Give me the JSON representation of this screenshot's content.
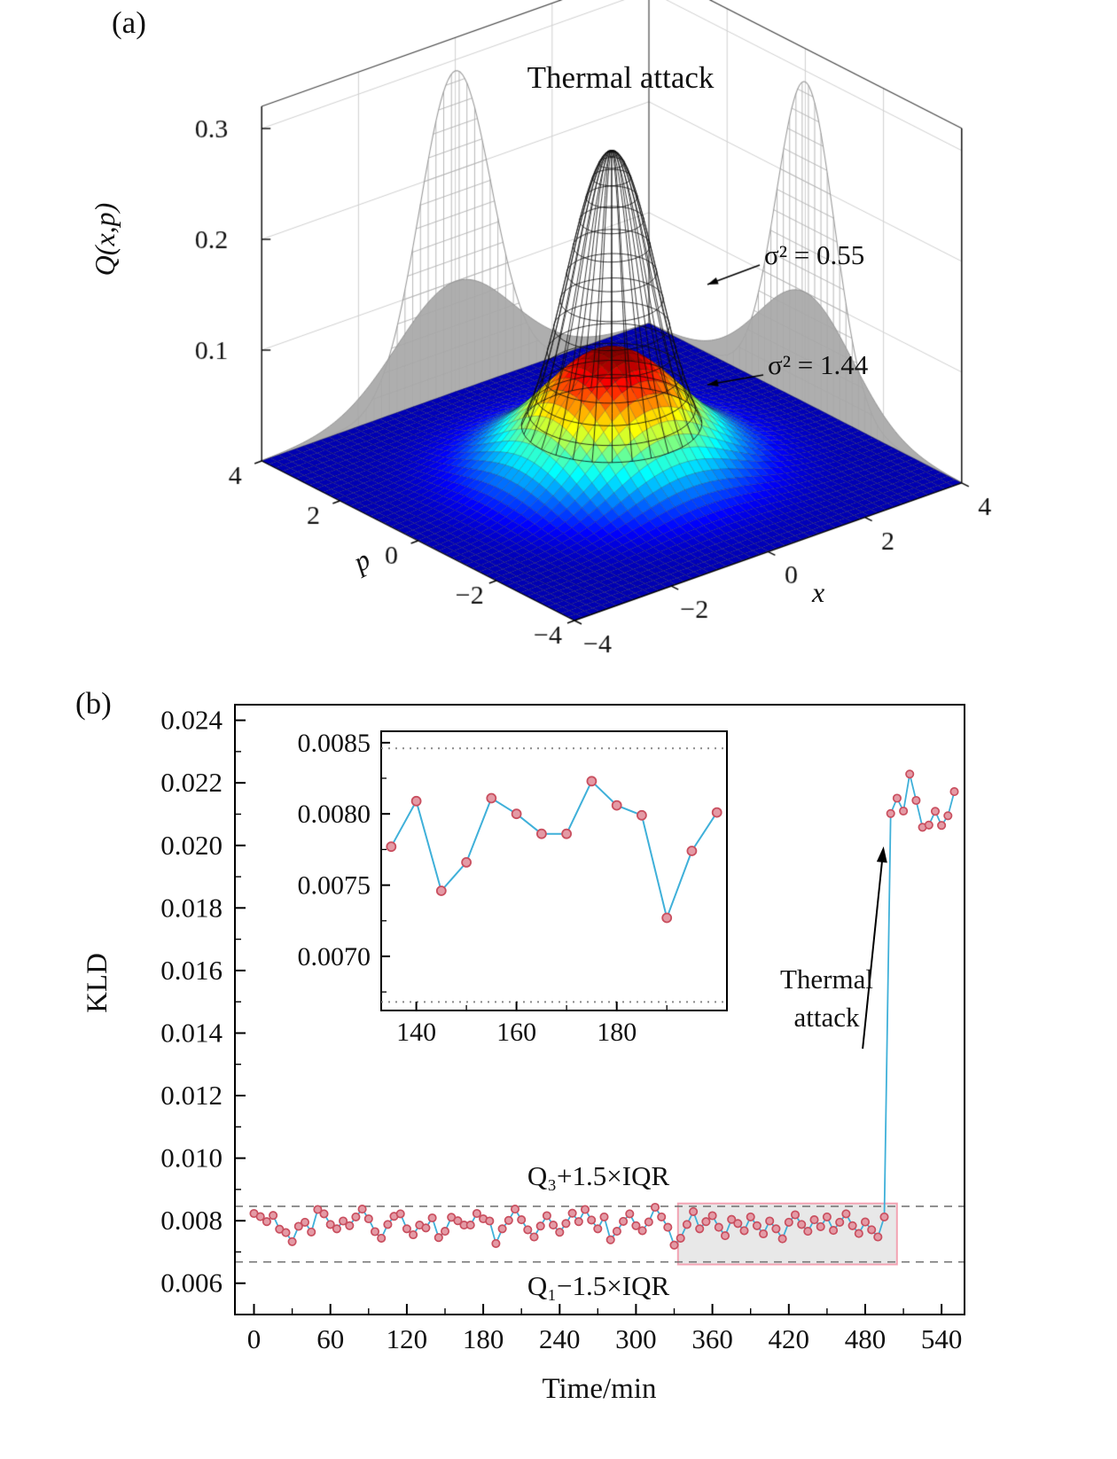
{
  "panels": {
    "a": {
      "letter": "(a)"
    },
    "b": {
      "letter": "(b)"
    }
  },
  "chart_data": [
    {
      "panel": "a",
      "type": "surface3d",
      "title": "Thermal attack",
      "xlabel": "x",
      "ylabel": "p",
      "zlabel": "Q(x,p)",
      "x_range": [
        -4,
        4
      ],
      "p_range": [
        -4,
        4
      ],
      "z_top": 0.32,
      "x_ticks": [
        -4,
        -2,
        0,
        2,
        4
      ],
      "p_ticks": [
        -4,
        -2,
        0,
        2,
        4
      ],
      "z_ticks": [
        0.1,
        0.2,
        0.3
      ],
      "surfaces": [
        {
          "name": "pre-attack-state-Q",
          "style": "black-wireframe",
          "sigma2": 0.55,
          "peak": 0.29,
          "r_max": 1.45
        },
        {
          "name": "thermal-attack-state-Q",
          "style": "jet-colormap-surface",
          "sigma2": 1.44,
          "peak": 0.11
        }
      ],
      "wall_projections": [
        {
          "style": "gray-mesh",
          "sigma2": 0.55,
          "peak": 0.29
        },
        {
          "style": "gray-filled",
          "sigma2": 1.44,
          "peak": 0.1
        }
      ],
      "annotations": [
        {
          "label": "σ² = 0.55",
          "sigma2": 0.55
        },
        {
          "label": "σ² = 1.44",
          "sigma2": 1.44
        }
      ],
      "colors": {
        "wireframe": "#0a0a0a",
        "projection_gray": "#a7a7a7",
        "wall_grid": "#cfcfcf"
      }
    },
    {
      "panel": "b",
      "type": "line",
      "xlabel": "Time/min",
      "ylabel": "KLD",
      "xlim": [
        -15,
        558
      ],
      "ylim": [
        0.005,
        0.0245
      ],
      "x_ticks": {
        "values": [
          0,
          60,
          120,
          180,
          240,
          300,
          360,
          420,
          480,
          540
        ],
        "labels": [
          "0",
          "60",
          "120",
          "180",
          "240",
          "300",
          "360",
          "420",
          "480",
          "540"
        ]
      },
      "y_ticks": {
        "values": [
          0.006,
          0.008,
          0.01,
          0.012,
          0.014,
          0.016,
          0.018,
          0.02,
          0.022,
          0.024
        ],
        "labels": [
          "0.006",
          "0.008",
          "0.010",
          "0.012",
          "0.014",
          "0.016",
          "0.018",
          "0.020",
          "0.022",
          "0.024"
        ]
      },
      "series": {
        "name": "KLD-vs-time",
        "t_start": 0,
        "t_step": 5,
        "values": [
          0.00823,
          0.00813,
          0.00797,
          0.00817,
          0.00773,
          0.00762,
          0.00733,
          0.00782,
          0.00795,
          0.00764,
          0.00836,
          0.00822,
          0.00788,
          0.00774,
          0.00799,
          0.00784,
          0.00812,
          0.00837,
          0.00806,
          0.00765,
          0.00744,
          0.00788,
          0.00814,
          0.00822,
          0.00774,
          0.00755,
          0.00786,
          0.00777,
          0.00809,
          0.00746,
          0.00766,
          0.00811,
          0.008,
          0.00786,
          0.00786,
          0.00823,
          0.00806,
          0.00799,
          0.00727,
          0.00774,
          0.00801,
          0.00837,
          0.00803,
          0.00771,
          0.00748,
          0.00783,
          0.00816,
          0.00786,
          0.00763,
          0.00791,
          0.00824,
          0.00797,
          0.00836,
          0.00802,
          0.00774,
          0.00812,
          0.00739,
          0.00766,
          0.00798,
          0.00822,
          0.00784,
          0.00768,
          0.00796,
          0.00843,
          0.00812,
          0.00779,
          0.00722,
          0.00744,
          0.00788,
          0.00829,
          0.00774,
          0.00797,
          0.00816,
          0.00779,
          0.00752,
          0.00804,
          0.00791,
          0.00768,
          0.00812,
          0.00784,
          0.00758,
          0.00799,
          0.00774,
          0.00742,
          0.00795,
          0.00819,
          0.00788,
          0.00766,
          0.00803,
          0.00781,
          0.00812,
          0.00769,
          0.00795,
          0.00822,
          0.00784,
          0.00759,
          0.00796,
          0.00771,
          0.00748,
          0.00812,
          0.02102,
          0.02151,
          0.0211,
          0.02228,
          0.02144,
          0.02058,
          0.02065,
          0.02109,
          0.02064,
          0.02095,
          0.02172
        ]
      },
      "bounds": {
        "upper": {
          "value": 0.00846,
          "label": "Q₃+1.5×IQR"
        },
        "lower": {
          "value": 0.00668,
          "label": "Q₁−1.5×IQR"
        }
      },
      "highlight_box": {
        "t0": 333,
        "t1": 505,
        "v0": 0.0066,
        "v1": 0.00855
      },
      "attack_annotation": {
        "text": "Thermal\nattack",
        "from": {
          "t": 478,
          "v": 0.0135
        },
        "to": {
          "t": 494,
          "v": 0.0198
        }
      },
      "inset": {
        "xlim": [
          133,
          202
        ],
        "ylim": [
          0.00662,
          0.00858
        ],
        "t_range": [
          135,
          200
        ],
        "x_ticks": {
          "values": [
            140,
            160,
            180
          ],
          "labels": [
            "140",
            "160",
            "180"
          ]
        },
        "y_ticks": {
          "values": [
            0.007,
            0.0075,
            0.008,
            0.0085
          ],
          "labels": [
            "0.0070",
            "0.0075",
            "0.0080",
            "0.0085"
          ]
        }
      },
      "colors": {
        "line": "#3fb0d9",
        "marker_fill": "#e49aa5",
        "marker_edge": "#c94f5f",
        "bound_line": "#777777",
        "highlight_fill": "rgba(205,205,205,0.45)",
        "highlight_edge": "rgba(242,158,175,0.95)"
      }
    }
  ]
}
